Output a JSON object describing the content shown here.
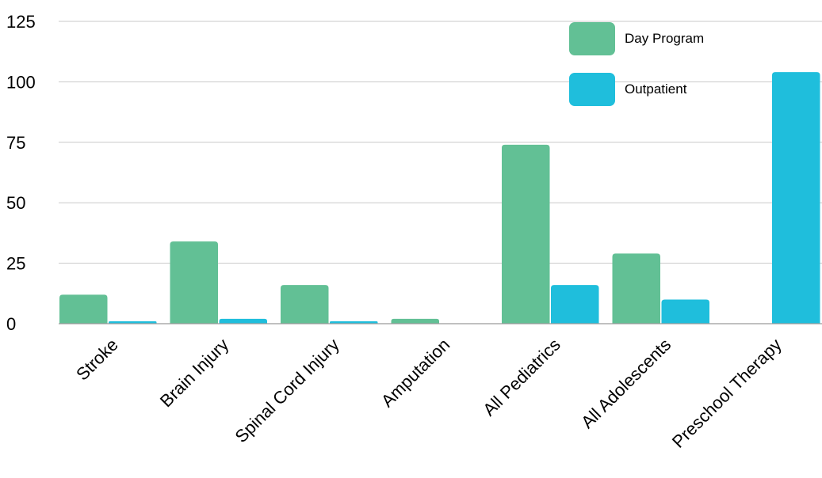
{
  "chart_data": {
    "type": "bar",
    "categories": [
      "Stroke",
      "Brain Injury",
      "Spinal Cord Injury",
      "Amputation",
      "All Pediatrics",
      "All Adolescents",
      "Preschool Therapy"
    ],
    "series": [
      {
        "name": "Day Program",
        "color": "#62c095",
        "values": [
          12,
          34,
          16,
          2,
          74,
          29,
          0
        ]
      },
      {
        "name": "Outpatient",
        "color": "#1fbedc",
        "values": [
          1,
          2,
          1,
          0,
          16,
          10,
          104
        ]
      }
    ],
    "yticks": [
      0,
      25,
      50,
      75,
      100,
      125
    ],
    "ylim": [
      0,
      125
    ],
    "grid": true,
    "legend_position": "top-right"
  }
}
